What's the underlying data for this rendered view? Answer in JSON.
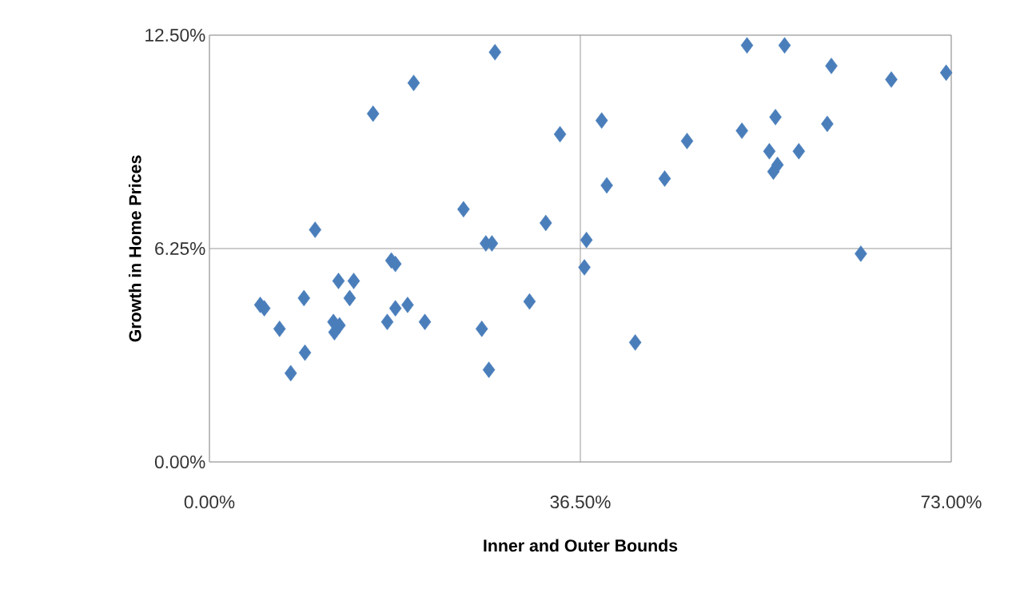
{
  "chart_data": {
    "type": "scatter",
    "xlabel": "Inner and Outer Bounds",
    "ylabel": "Growth in Home Prices",
    "xlim": [
      0,
      73
    ],
    "ylim": [
      0,
      12.5
    ],
    "xticks": [
      {
        "value": 0,
        "label": "0.00%"
      },
      {
        "value": 36.5,
        "label": "36.50%"
      },
      {
        "value": 73,
        "label": "73.00%"
      }
    ],
    "yticks": [
      {
        "value": 0,
        "label": "0.00%"
      },
      {
        "value": 6.25,
        "label": "6.25%"
      },
      {
        "value": 12.5,
        "label": "12.50%"
      }
    ],
    "grid": true,
    "marker": "diamond",
    "series": [
      {
        "color": "#4a7ebb",
        "x": [
          5.0,
          5.4,
          6.9,
          8.0,
          9.3,
          9.4,
          10.4,
          12.2,
          12.3,
          12.7,
          12.8,
          13.8,
          14.2,
          16.1,
          17.5,
          17.9,
          18.3,
          18.3,
          19.5,
          20.1,
          21.2,
          25.0,
          26.8,
          27.2,
          27.5,
          27.8,
          28.1,
          31.5,
          33.1,
          34.5,
          36.9,
          37.1,
          38.6,
          39.1,
          41.9,
          44.8,
          47.0,
          52.4,
          52.9,
          55.1,
          55.5,
          55.7,
          55.9,
          56.6,
          58.0,
          60.8,
          61.2,
          64.1,
          67.1,
          72.5
        ],
        "values": [
          4.6,
          4.5,
          3.9,
          2.6,
          4.8,
          3.2,
          6.8,
          4.1,
          3.8,
          5.3,
          4.0,
          4.8,
          5.3,
          10.2,
          4.1,
          5.9,
          5.8,
          4.5,
          4.6,
          11.1,
          4.1,
          7.4,
          3.9,
          6.4,
          2.7,
          6.4,
          12.0,
          4.7,
          7.0,
          9.6,
          5.7,
          6.5,
          10.0,
          8.1,
          3.5,
          8.3,
          9.4,
          9.7,
          12.2,
          9.1,
          8.5,
          10.1,
          8.7,
          12.2,
          9.1,
          9.9,
          11.6,
          6.1,
          11.2,
          11.4
        ]
      }
    ]
  }
}
